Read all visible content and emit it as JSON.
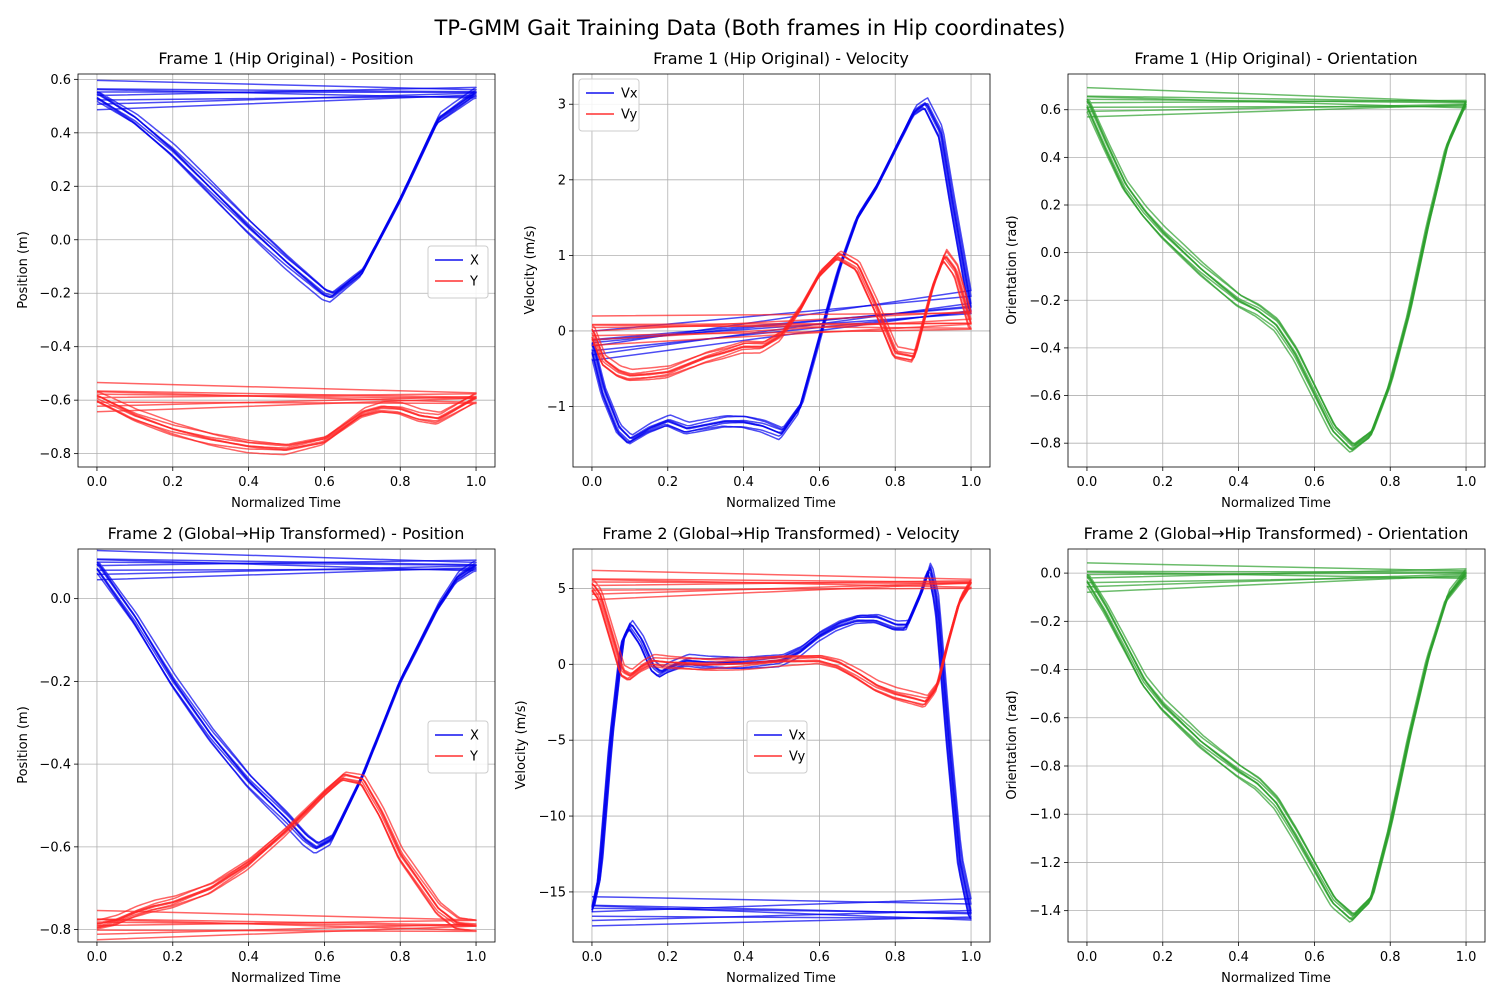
{
  "figure_title": "TP-GMM Gait Training Data (Both frames in Hip coordinates)",
  "chart_data": [
    {
      "type": "line",
      "title": "Frame 1 (Hip Original) - Position",
      "xlabel": "Normalized Time",
      "ylabel": "Position (m)",
      "xlim": [
        -0.05,
        1.05
      ],
      "ylim": [
        -0.85,
        0.62
      ],
      "xticks": [
        0.0,
        0.2,
        0.4,
        0.6,
        0.8,
        1.0
      ],
      "yticks": [
        -0.8,
        -0.6,
        -0.4,
        -0.2,
        0.0,
        0.2,
        0.4,
        0.6
      ],
      "xtick_labels": [
        "0.0",
        "0.2",
        "0.4",
        "0.6",
        "0.8",
        "1.0"
      ],
      "ytick_labels": [
        "−0.8",
        "−0.6",
        "−0.4",
        "−0.2",
        "0.0",
        "0.2",
        "0.4",
        "0.6"
      ],
      "grid": true,
      "legend_position": "center-right",
      "series": [
        {
          "name": "X",
          "color": "#0000ee",
          "trials": 8,
          "x": [
            0,
            0.1,
            0.2,
            0.3,
            0.4,
            0.5,
            0.6,
            0.62,
            0.7,
            0.8,
            0.9,
            1.0
          ],
          "values": [
            0.54,
            0.45,
            0.33,
            0.19,
            0.05,
            -0.08,
            -0.2,
            -0.21,
            -0.12,
            0.15,
            0.45,
            0.55
          ]
        },
        {
          "name": "Y",
          "color": "#ff2222",
          "trials": 8,
          "x": [
            0,
            0.1,
            0.2,
            0.3,
            0.4,
            0.5,
            0.6,
            0.65,
            0.7,
            0.75,
            0.8,
            0.85,
            0.9,
            0.95,
            1.0
          ],
          "values": [
            -0.59,
            -0.66,
            -0.71,
            -0.745,
            -0.77,
            -0.78,
            -0.75,
            -0.7,
            -0.65,
            -0.63,
            -0.635,
            -0.66,
            -0.67,
            -0.63,
            -0.59
          ]
        }
      ]
    },
    {
      "type": "line",
      "title": "Frame 1 (Hip Original) - Velocity",
      "xlabel": "Normalized Time",
      "ylabel": "Velocity (m/s)",
      "xlim": [
        -0.05,
        1.05
      ],
      "ylim": [
        -1.8,
        3.4
      ],
      "xticks": [
        0.0,
        0.2,
        0.4,
        0.6,
        0.8,
        1.0
      ],
      "yticks": [
        -1,
        0,
        1,
        2,
        3
      ],
      "xtick_labels": [
        "0.0",
        "0.2",
        "0.4",
        "0.6",
        "0.8",
        "1.0"
      ],
      "ytick_labels": [
        "−1",
        "0",
        "1",
        "2",
        "3"
      ],
      "grid": true,
      "legend_position": "upper-left",
      "series": [
        {
          "name": "Vx",
          "color": "#0000ee",
          "trials": 8,
          "x": [
            0,
            0.03,
            0.07,
            0.1,
            0.15,
            0.2,
            0.25,
            0.3,
            0.35,
            0.4,
            0.45,
            0.5,
            0.55,
            0.6,
            0.65,
            0.7,
            0.75,
            0.8,
            0.85,
            0.88,
            0.92,
            0.95,
            1.0
          ],
          "values": [
            -0.2,
            -0.8,
            -1.3,
            -1.45,
            -1.3,
            -1.2,
            -1.3,
            -1.25,
            -1.2,
            -1.2,
            -1.25,
            -1.35,
            -1.0,
            -0.1,
            0.8,
            1.5,
            1.9,
            2.4,
            2.9,
            3.0,
            2.6,
            1.7,
            0.3
          ]
        },
        {
          "name": "Vy",
          "color": "#ff2222",
          "trials": 8,
          "x": [
            0,
            0.03,
            0.07,
            0.1,
            0.15,
            0.2,
            0.25,
            0.3,
            0.35,
            0.4,
            0.45,
            0.5,
            0.55,
            0.6,
            0.65,
            0.7,
            0.75,
            0.8,
            0.85,
            0.9,
            0.93,
            0.96,
            1.0
          ],
          "values": [
            0.0,
            -0.4,
            -0.55,
            -0.6,
            -0.58,
            -0.55,
            -0.45,
            -0.35,
            -0.28,
            -0.2,
            -0.2,
            -0.05,
            0.3,
            0.75,
            1.0,
            0.85,
            0.3,
            -0.3,
            -0.35,
            0.6,
            1.0,
            0.8,
            0.1
          ]
        }
      ]
    },
    {
      "type": "line",
      "title": "Frame 1 (Hip Original) - Orientation",
      "xlabel": "Normalized Time",
      "ylabel": "Orientation (rad)",
      "xlim": [
        -0.05,
        1.05
      ],
      "ylim": [
        -0.9,
        0.75
      ],
      "xticks": [
        0.0,
        0.2,
        0.4,
        0.6,
        0.8,
        1.0
      ],
      "yticks": [
        -0.8,
        -0.6,
        -0.4,
        -0.2,
        0.0,
        0.2,
        0.4,
        0.6
      ],
      "xtick_labels": [
        "0.0",
        "0.2",
        "0.4",
        "0.6",
        "0.8",
        "1.0"
      ],
      "ytick_labels": [
        "−0.8",
        "−0.6",
        "−0.4",
        "−0.2",
        "0.0",
        "0.2",
        "0.4",
        "0.6"
      ],
      "grid": true,
      "series": [
        {
          "color": "#2ca02c",
          "trials": 8,
          "x": [
            0,
            0.05,
            0.1,
            0.15,
            0.2,
            0.3,
            0.4,
            0.45,
            0.5,
            0.55,
            0.6,
            0.65,
            0.7,
            0.75,
            0.8,
            0.85,
            0.9,
            0.95,
            1.0
          ],
          "values": [
            0.63,
            0.45,
            0.28,
            0.17,
            0.08,
            -0.07,
            -0.2,
            -0.24,
            -0.3,
            -0.42,
            -0.58,
            -0.74,
            -0.82,
            -0.76,
            -0.55,
            -0.25,
            0.12,
            0.45,
            0.63
          ]
        }
      ]
    },
    {
      "type": "line",
      "title": "Frame 2 (Global→Hip Transformed) - Position",
      "xlabel": "Normalized Time",
      "ylabel": "Position (m)",
      "xlim": [
        -0.05,
        1.05
      ],
      "ylim": [
        -0.83,
        0.12
      ],
      "xticks": [
        0.0,
        0.2,
        0.4,
        0.6,
        0.8,
        1.0
      ],
      "yticks": [
        -0.8,
        -0.6,
        -0.4,
        -0.2,
        0.0
      ],
      "xtick_labels": [
        "0.0",
        "0.2",
        "0.4",
        "0.6",
        "0.8",
        "1.0"
      ],
      "ytick_labels": [
        "−0.8",
        "−0.6",
        "−0.4",
        "−0.2",
        "0.0"
      ],
      "grid": true,
      "legend_position": "center-right",
      "series": [
        {
          "name": "X",
          "color": "#0000ee",
          "trials": 8,
          "x": [
            0,
            0.1,
            0.2,
            0.3,
            0.4,
            0.5,
            0.55,
            0.58,
            0.62,
            0.7,
            0.8,
            0.9,
            0.95,
            1.0
          ],
          "values": [
            0.08,
            -0.05,
            -0.2,
            -0.33,
            -0.44,
            -0.53,
            -0.58,
            -0.6,
            -0.58,
            -0.43,
            -0.2,
            -0.02,
            0.05,
            0.08
          ]
        },
        {
          "name": "Y",
          "color": "#ff2222",
          "trials": 8,
          "x": [
            0,
            0.05,
            0.1,
            0.15,
            0.2,
            0.3,
            0.4,
            0.5,
            0.6,
            0.65,
            0.7,
            0.75,
            0.8,
            0.9,
            0.95,
            1.0
          ],
          "values": [
            -0.79,
            -0.78,
            -0.76,
            -0.745,
            -0.735,
            -0.7,
            -0.64,
            -0.56,
            -0.47,
            -0.43,
            -0.44,
            -0.52,
            -0.62,
            -0.75,
            -0.785,
            -0.79
          ]
        }
      ]
    },
    {
      "type": "line",
      "title": "Frame 2 (Global→Hip Transformed) - Velocity",
      "xlabel": "Normalized Time",
      "ylabel": "Velocity (m/s)",
      "xlim": [
        -0.05,
        1.05
      ],
      "ylim": [
        -18.3,
        7.6
      ],
      "xticks": [
        0.0,
        0.2,
        0.4,
        0.6,
        0.8,
        1.0
      ],
      "yticks": [
        -15,
        -10,
        -5,
        0,
        5
      ],
      "xtick_labels": [
        "0.0",
        "0.2",
        "0.4",
        "0.6",
        "0.8",
        "1.0"
      ],
      "ytick_labels": [
        "−15",
        "−10",
        "−5",
        "0",
        "5"
      ],
      "grid": true,
      "legend_position": "center",
      "series": [
        {
          "name": "Vx",
          "color": "#0000ee",
          "trials": 8,
          "x": [
            0,
            0.02,
            0.05,
            0.08,
            0.1,
            0.13,
            0.16,
            0.18,
            0.2,
            0.25,
            0.3,
            0.4,
            0.5,
            0.55,
            0.6,
            0.65,
            0.7,
            0.75,
            0.8,
            0.83,
            0.87,
            0.89,
            0.91,
            0.94,
            0.97,
            1.0
          ],
          "values": [
            -16.3,
            -14.0,
            -5.0,
            1.5,
            2.6,
            1.5,
            -0.2,
            -0.6,
            -0.3,
            0.2,
            0.1,
            0.1,
            0.3,
            0.9,
            1.9,
            2.6,
            3.0,
            3.0,
            2.5,
            2.5,
            4.8,
            6.4,
            4.0,
            -5.0,
            -13.0,
            -16.5
          ]
        },
        {
          "name": "Vy",
          "color": "#ff2222",
          "trials": 8,
          "x": [
            0,
            0.02,
            0.05,
            0.08,
            0.1,
            0.13,
            0.16,
            0.2,
            0.3,
            0.4,
            0.5,
            0.6,
            0.65,
            0.7,
            0.75,
            0.8,
            0.85,
            0.88,
            0.91,
            0.94,
            0.97,
            1.0
          ],
          "values": [
            5.2,
            4.5,
            2.0,
            -0.5,
            -0.8,
            -0.2,
            0.2,
            0.1,
            0.0,
            0.1,
            0.3,
            0.35,
            0.0,
            -0.7,
            -1.5,
            -2.0,
            -2.3,
            -2.5,
            -1.5,
            1.5,
            4.2,
            5.4
          ]
        }
      ]
    },
    {
      "type": "line",
      "title": "Frame 2 (Global→Hip Transformed) - Orientation",
      "xlabel": "Normalized Time",
      "ylabel": "Orientation (rad)",
      "xlim": [
        -0.05,
        1.05
      ],
      "ylim": [
        -1.53,
        0.1
      ],
      "xticks": [
        0.0,
        0.2,
        0.4,
        0.6,
        0.8,
        1.0
      ],
      "yticks": [
        -1.4,
        -1.2,
        -1.0,
        -0.8,
        -0.6,
        -0.4,
        -0.2,
        0.0
      ],
      "xtick_labels": [
        "0.0",
        "0.2",
        "0.4",
        "0.6",
        "0.8",
        "1.0"
      ],
      "ytick_labels": [
        "−1.4",
        "−1.2",
        "−1.0",
        "−0.8",
        "−0.6",
        "−0.4",
        "−0.2",
        "0.0"
      ],
      "grid": true,
      "series": [
        {
          "color": "#2ca02c",
          "trials": 8,
          "x": [
            0,
            0.05,
            0.1,
            0.15,
            0.2,
            0.3,
            0.4,
            0.45,
            0.5,
            0.55,
            0.6,
            0.65,
            0.7,
            0.75,
            0.8,
            0.85,
            0.9,
            0.95,
            1.0
          ],
          "values": [
            -0.02,
            -0.15,
            -0.3,
            -0.45,
            -0.55,
            -0.7,
            -0.82,
            -0.87,
            -0.95,
            -1.08,
            -1.22,
            -1.36,
            -1.43,
            -1.35,
            -1.05,
            -0.68,
            -0.35,
            -0.1,
            0.0
          ]
        }
      ]
    }
  ]
}
